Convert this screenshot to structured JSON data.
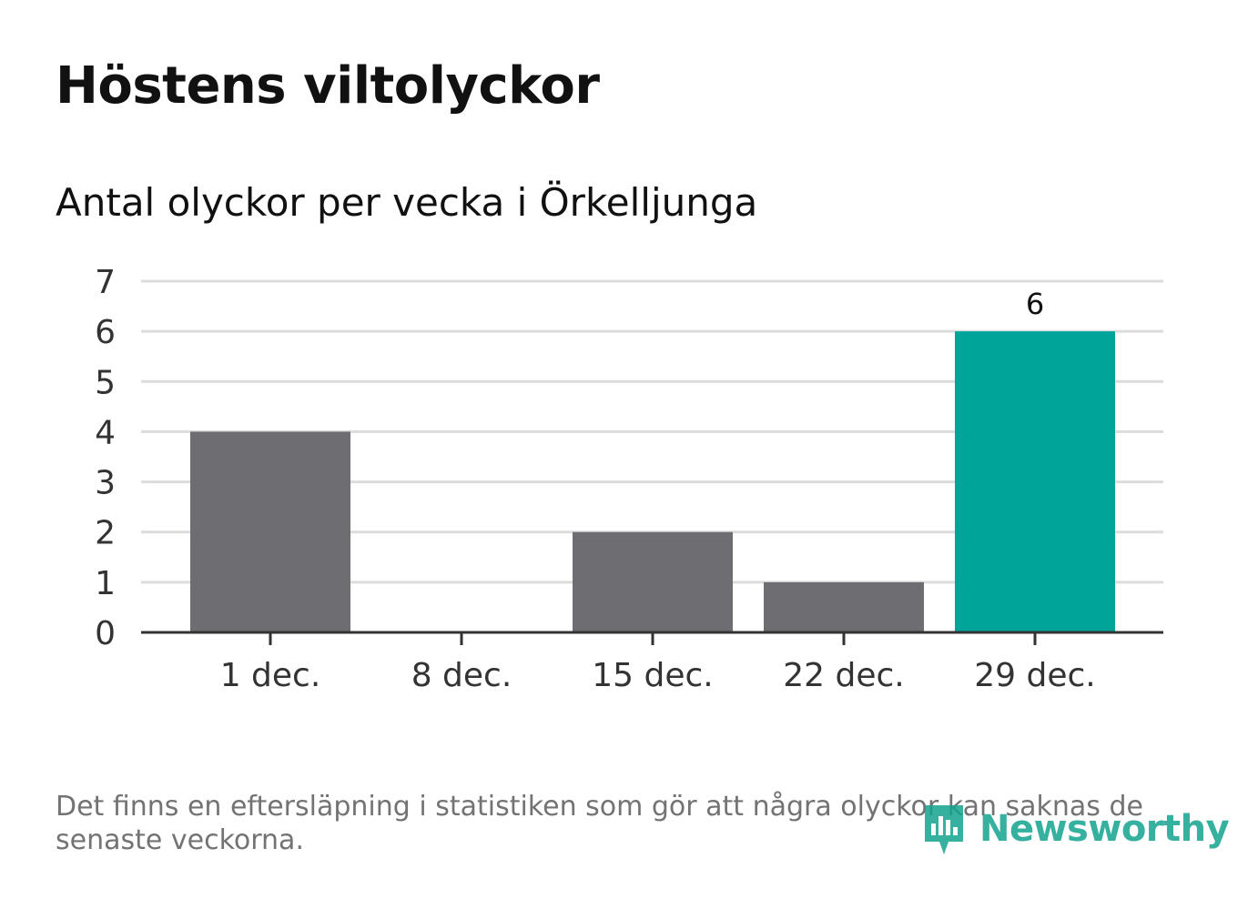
{
  "title": "Höstens viltolyckor",
  "subtitle": "Antal olyckor per vecka i Örkelljunga",
  "footnote": "Det finns en eftersläpning i statistiken som gör att några olyckor kan saknas de senaste veckorna.",
  "logo": {
    "text": "Newsworthy",
    "icon": "newsworthy-logo-icon",
    "color": "#14a38f"
  },
  "colors": {
    "bar_default": "#6e6d72",
    "bar_highlight": "#00a499",
    "gridline": "#dcdcdc",
    "axis": "#333333",
    "tick_text": "#333333"
  },
  "chart_data": {
    "type": "bar",
    "title": "Höstens viltolyckor",
    "subtitle": "Antal olyckor per vecka i Örkelljunga",
    "xlabel": "",
    "ylabel": "",
    "categories": [
      "1 dec.",
      "8 dec.",
      "15 dec.",
      "22 dec.",
      "29 dec."
    ],
    "values": [
      4,
      0,
      2,
      1,
      6
    ],
    "highlight_index": 4,
    "data_labels": [
      {
        "index": 4,
        "text": "6"
      }
    ],
    "ylim": [
      0,
      7
    ],
    "yticks": [
      "0",
      "1",
      "2",
      "3",
      "4",
      "5",
      "6",
      "7"
    ],
    "grid": true,
    "legend": "none"
  }
}
